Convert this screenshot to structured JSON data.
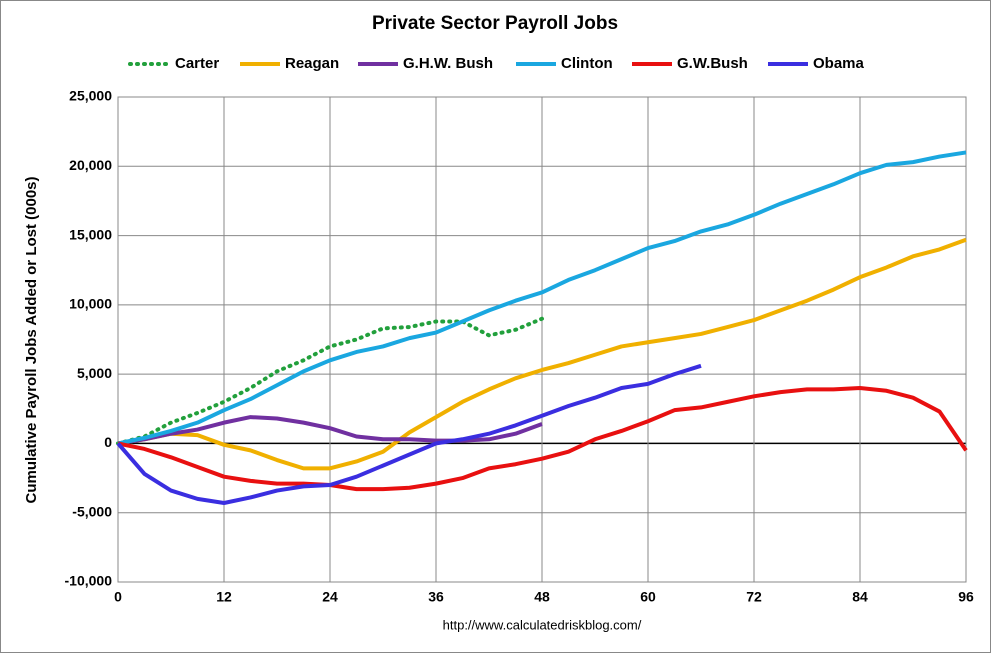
{
  "chart_data": {
    "type": "line",
    "title": "Private Sector Payroll Jobs",
    "y_label": "Cumulative Payroll Jobs Added or  Lost (000s)",
    "source": "http://www.calculatedriskblog.com/",
    "x": [
      0,
      3,
      6,
      9,
      12,
      15,
      18,
      21,
      24,
      27,
      30,
      33,
      36,
      39,
      42,
      45,
      48,
      51,
      54,
      57,
      60,
      63,
      66,
      69,
      72,
      75,
      78,
      81,
      84,
      87,
      90,
      93,
      96
    ],
    "xlim": [
      0,
      96
    ],
    "xticks": [
      0,
      12,
      24,
      36,
      48,
      60,
      72,
      84,
      96
    ],
    "ylim": [
      -10000,
      25000
    ],
    "yticks": [
      {
        "value": -10000,
        "label": "-10,000"
      },
      {
        "value": -5000,
        "label": "-5,000"
      },
      0,
      {
        "value": 5000,
        "label": "5,000"
      },
      {
        "value": 10000,
        "label": "10,000"
      },
      {
        "value": 15000,
        "label": "15,000"
      },
      {
        "value": 20000,
        "label": "20,000"
      },
      {
        "value": 25000,
        "label": "25,000"
      }
    ],
    "grid": true,
    "legend": "top",
    "series": [
      {
        "name": "Carter",
        "color": "#22a03c",
        "dash": "dotted",
        "values": [
          0,
          500,
          1500,
          2200,
          3000,
          4000,
          5200,
          6000,
          7000,
          7500,
          8300,
          8400,
          8800,
          8800,
          7800,
          8200,
          9000,
          null,
          null,
          null,
          null,
          null,
          null,
          null,
          null,
          null,
          null,
          null,
          null,
          null,
          null,
          null,
          null
        ]
      },
      {
        "name": "Reagan",
        "color": "#f0b000",
        "values": [
          0,
          300,
          700,
          600,
          -100,
          -500,
          -1200,
          -1800,
          -1800,
          -1300,
          -600,
          800,
          1900,
          3000,
          3900,
          4700,
          5300,
          5800,
          6400,
          7000,
          7300,
          7600,
          7900,
          8400,
          8900,
          9600,
          10300,
          11100,
          12000,
          12700,
          13500,
          14000,
          14700
        ]
      },
      {
        "name": "G.H.W. Bush",
        "color": "#7030a0",
        "values": [
          0,
          300,
          700,
          1000,
          1500,
          1900,
          1800,
          1500,
          1100,
          500,
          300,
          300,
          200,
          200,
          300,
          700,
          1400,
          null,
          null,
          null,
          null,
          null,
          null,
          null,
          null,
          null,
          null,
          null,
          null,
          null,
          null,
          null,
          null
        ]
      },
      {
        "name": "Clinton",
        "color": "#1aa7e0",
        "values": [
          0,
          400,
          900,
          1500,
          2400,
          3200,
          4200,
          5200,
          6000,
          6600,
          7000,
          7600,
          8000,
          8800,
          9600,
          10300,
          10900,
          11800,
          12500,
          13300,
          14100,
          14600,
          15300,
          15800,
          16500,
          17300,
          18000,
          18700,
          19500,
          20100,
          20300,
          20700,
          21000
        ]
      },
      {
        "name": "G.W.Bush",
        "color": "#e81010",
        "values": [
          0,
          -400,
          -1000,
          -1700,
          -2400,
          -2700,
          -2900,
          -2900,
          -3000,
          -3300,
          -3300,
          -3200,
          -2900,
          -2500,
          -1800,
          -1500,
          -1100,
          -600,
          300,
          900,
          1600,
          2400,
          2600,
          3000,
          3400,
          3700,
          3900,
          3900,
          4000,
          3800,
          3300,
          2300,
          -500
        ]
      },
      {
        "name": "Obama",
        "color": "#3a2ee0",
        "values": [
          0,
          -2200,
          -3400,
          -4000,
          -4300,
          -3900,
          -3400,
          -3100,
          -3000,
          -2400,
          -1600,
          -800,
          0,
          300,
          700,
          1300,
          2000,
          2700,
          3300,
          4000,
          4300,
          5000,
          5600,
          null,
          null,
          null,
          null,
          null,
          null,
          null,
          null,
          null,
          null
        ]
      }
    ]
  }
}
